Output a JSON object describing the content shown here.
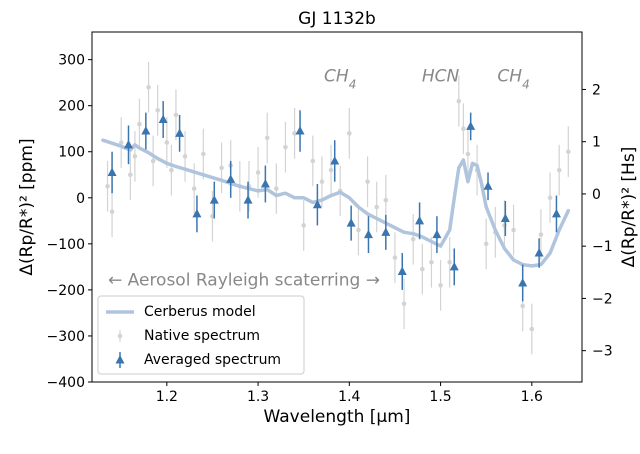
{
  "chart_data": {
    "type": "scatter",
    "title": "GJ 1132b",
    "xlabel": "Wavelength [μm]",
    "ylabel": "Δ(Rp/R*)² [ppm]",
    "ylabel2": "Δ(Rp/R*)² [Hs]",
    "xlim": [
      1.118,
      1.655
    ],
    "ylim": [
      -400,
      360
    ],
    "y2lim": [
      -3.6,
      3.1
    ],
    "xticks": [
      1.2,
      1.3,
      1.4,
      1.5,
      1.6
    ],
    "xtick_labels": [
      "1.2",
      "1.3",
      "1.4",
      "1.5",
      "1.6"
    ],
    "yticks": [
      -400,
      -300,
      -200,
      -100,
      0,
      100,
      200,
      300
    ],
    "ytick_labels": [
      "−400",
      "−300",
      "−200",
      "−100",
      "0",
      "100",
      "200",
      "300"
    ],
    "y2ticks": [
      -3,
      -2,
      -1,
      0,
      1,
      2
    ],
    "y2tick_labels": [
      "−3",
      "−2",
      "−1",
      "0",
      "1",
      "2"
    ],
    "annotations": [
      {
        "label": "CH4",
        "x": 1.39,
        "y": 270
      },
      {
        "label": "HCN",
        "x": 1.5,
        "y": 270
      },
      {
        "label": "CH4",
        "x": 1.58,
        "y": 270
      }
    ],
    "note": "← Aerosol Rayleigh scaterring →",
    "legend": {
      "position": "lower-left",
      "entries": [
        {
          "label": "Cerberus model",
          "series": "model"
        },
        {
          "label": "Native spectrum",
          "series": "native"
        },
        {
          "label": "Averaged spectrum",
          "series": "averaged"
        }
      ]
    },
    "series": [
      {
        "name": "Cerberus model",
        "kind": "line",
        "color": "#b0c4de",
        "x": [
          1.13,
          1.15,
          1.16,
          1.165,
          1.17,
          1.18,
          1.19,
          1.2,
          1.21,
          1.22,
          1.24,
          1.26,
          1.28,
          1.3,
          1.31,
          1.32,
          1.33,
          1.34,
          1.35,
          1.36,
          1.37,
          1.38,
          1.39,
          1.4,
          1.41,
          1.42,
          1.43,
          1.44,
          1.45,
          1.46,
          1.47,
          1.48,
          1.49,
          1.5,
          1.51,
          1.515,
          1.52,
          1.525,
          1.53,
          1.535,
          1.54,
          1.545,
          1.55,
          1.56,
          1.57,
          1.58,
          1.59,
          1.6,
          1.61,
          1.62,
          1.63,
          1.64
        ],
        "y": [
          125,
          112,
          104,
          115,
          108,
          98,
          85,
          75,
          68,
          62,
          50,
          38,
          25,
          15,
          18,
          5,
          10,
          0,
          0,
          -10,
          -5,
          5,
          12,
          0,
          -20,
          -35,
          -45,
          -55,
          -65,
          -75,
          -78,
          -85,
          -95,
          -105,
          -70,
          0,
          65,
          82,
          35,
          75,
          70,
          30,
          -20,
          -70,
          -110,
          -135,
          -145,
          -148,
          -145,
          -120,
          -70,
          -28
        ]
      },
      {
        "name": "Native spectrum",
        "kind": "errorbar",
        "color": "#d3d3d3",
        "x": [
          1.135,
          1.14,
          1.15,
          1.16,
          1.165,
          1.17,
          1.18,
          1.185,
          1.19,
          1.2,
          1.205,
          1.21,
          1.22,
          1.23,
          1.24,
          1.25,
          1.26,
          1.27,
          1.28,
          1.29,
          1.3,
          1.31,
          1.32,
          1.33,
          1.34,
          1.35,
          1.36,
          1.37,
          1.38,
          1.39,
          1.4,
          1.41,
          1.42,
          1.43,
          1.44,
          1.45,
          1.46,
          1.47,
          1.48,
          1.49,
          1.5,
          1.51,
          1.52,
          1.525,
          1.53,
          1.54,
          1.55,
          1.56,
          1.57,
          1.58,
          1.59,
          1.6,
          1.61,
          1.62,
          1.63,
          1.64
        ],
        "y": [
          25,
          -30,
          120,
          50,
          90,
          160,
          240,
          80,
          190,
          120,
          60,
          180,
          90,
          20,
          95,
          -40,
          65,
          70,
          25,
          25,
          55,
          130,
          20,
          110,
          140,
          -60,
          80,
          35,
          60,
          15,
          140,
          -70,
          35,
          -20,
          -5,
          -130,
          -230,
          -90,
          -155,
          -140,
          -190,
          -140,
          210,
          150,
          95,
          60,
          -100,
          -75,
          -60,
          -70,
          -235,
          -285,
          -80,
          0,
          60,
          100
        ],
        "err": [
          55,
          55,
          55,
          55,
          55,
          55,
          55,
          55,
          55,
          55,
          55,
          55,
          55,
          55,
          55,
          55,
          55,
          55,
          55,
          55,
          55,
          55,
          55,
          55,
          55,
          55,
          55,
          55,
          55,
          55,
          55,
          55,
          55,
          55,
          55,
          55,
          55,
          55,
          55,
          55,
          55,
          55,
          55,
          55,
          55,
          55,
          55,
          55,
          55,
          55,
          55,
          55,
          55,
          55,
          55,
          55
        ]
      },
      {
        "name": "Averaged spectrum",
        "kind": "errorbar",
        "color": "#3b75af",
        "x": [
          1.14,
          1.158,
          1.177,
          1.196,
          1.214,
          1.233,
          1.252,
          1.27,
          1.289,
          1.308,
          1.346,
          1.365,
          1.384,
          1.402,
          1.421,
          1.44,
          1.458,
          1.477,
          1.496,
          1.515,
          1.533,
          1.552,
          1.571,
          1.59,
          1.608,
          1.627
        ],
        "y": [
          55,
          115,
          145,
          170,
          140,
          -35,
          -5,
          40,
          -5,
          30,
          145,
          -15,
          80,
          -55,
          -80,
          -75,
          -160,
          -50,
          -80,
          -150,
          155,
          25,
          -45,
          -185,
          -120,
          -35
        ],
        "err": [
          45,
          42,
          40,
          40,
          40,
          40,
          40,
          40,
          40,
          40,
          45,
          45,
          45,
          38,
          40,
          38,
          40,
          40,
          40,
          40,
          30,
          30,
          38,
          40,
          32,
          40
        ]
      }
    ]
  }
}
